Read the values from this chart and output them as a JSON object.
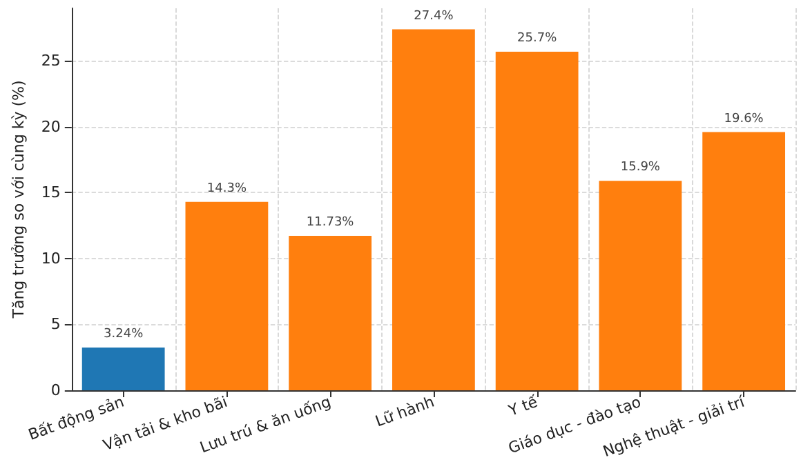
{
  "chart_data": {
    "type": "bar",
    "ylabel": "Tăng trưởng so với cùng kỳ (%)",
    "categories": [
      "Bất động sản",
      "Vận tải & kho bãi",
      "Lưu trú & ăn uống",
      "Lữ hành",
      "Y tế",
      "Giáo dục - đào tạo",
      "Nghệ thuật - giải trí"
    ],
    "values": [
      3.24,
      14.3,
      11.73,
      27.4,
      25.7,
      15.9,
      19.6
    ],
    "colors": [
      "#1f77b4",
      "#ff7f0e",
      "#ff7f0e",
      "#ff7f0e",
      "#ff7f0e",
      "#ff7f0e",
      "#ff7f0e"
    ],
    "value_labels": [
      "3.24%",
      "14.3%",
      "11.73%",
      "27.4%",
      "25.7%",
      "15.9%",
      "19.6%"
    ],
    "ylim": [
      0,
      29
    ],
    "yticks": [
      0,
      5,
      10,
      15,
      20,
      25
    ],
    "grid": true
  }
}
